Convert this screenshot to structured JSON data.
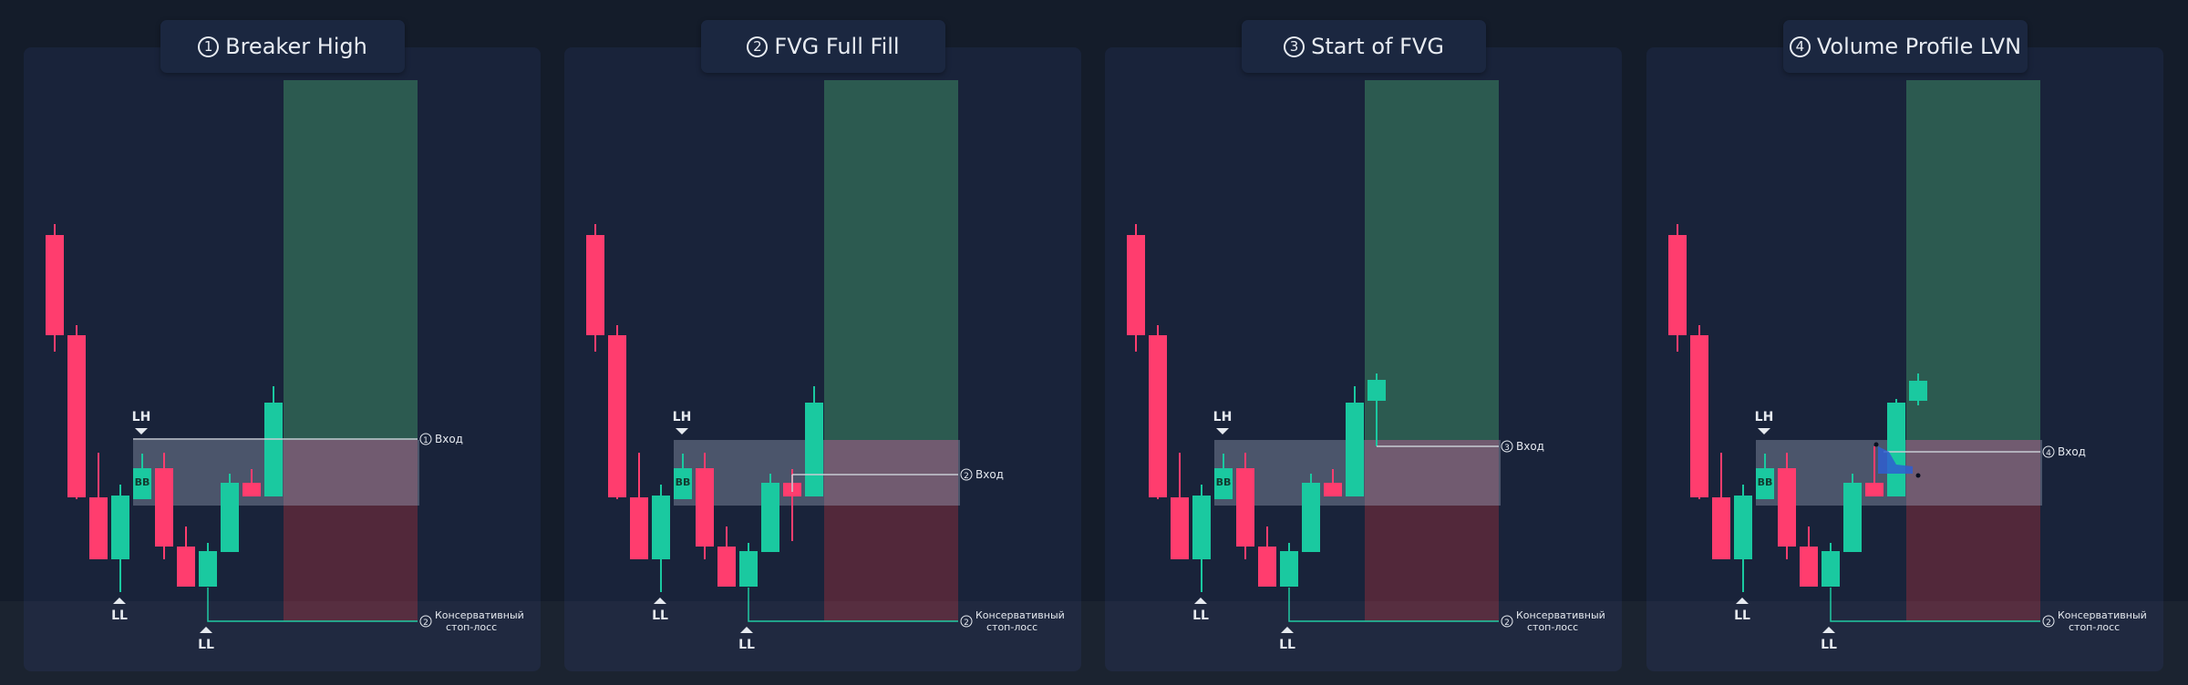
{
  "panels": [
    {
      "num": "1",
      "title": "Breaker High",
      "entry_num": "1",
      "entry_label": "Вход"
    },
    {
      "num": "2",
      "title": "FVG Full Fill",
      "entry_num": "2",
      "entry_label": "Вход"
    },
    {
      "num": "3",
      "title": "Start of FVG",
      "entry_num": "3",
      "entry_label": "Вход"
    },
    {
      "num": "4",
      "title": "Volume Profile LVN",
      "entry_num": "4",
      "entry_label": "Вход"
    }
  ],
  "labels": {
    "lh": "LH",
    "ll": "LL",
    "bb": "BB",
    "stop_num": "2",
    "stop_line1": "Консервативный",
    "stop_line2": "стоп-лосс"
  },
  "colors": {
    "bull": "#1ac9a0",
    "bear": "#ff3d6e",
    "profit_zone": "#2c5a50",
    "loss_zone": "#5e2e42",
    "breaker_zone": "#8a93a8",
    "line": "#c8ccd4",
    "teal_line": "#1ac9a0",
    "volume_profile": "#2f5fd0"
  }
}
